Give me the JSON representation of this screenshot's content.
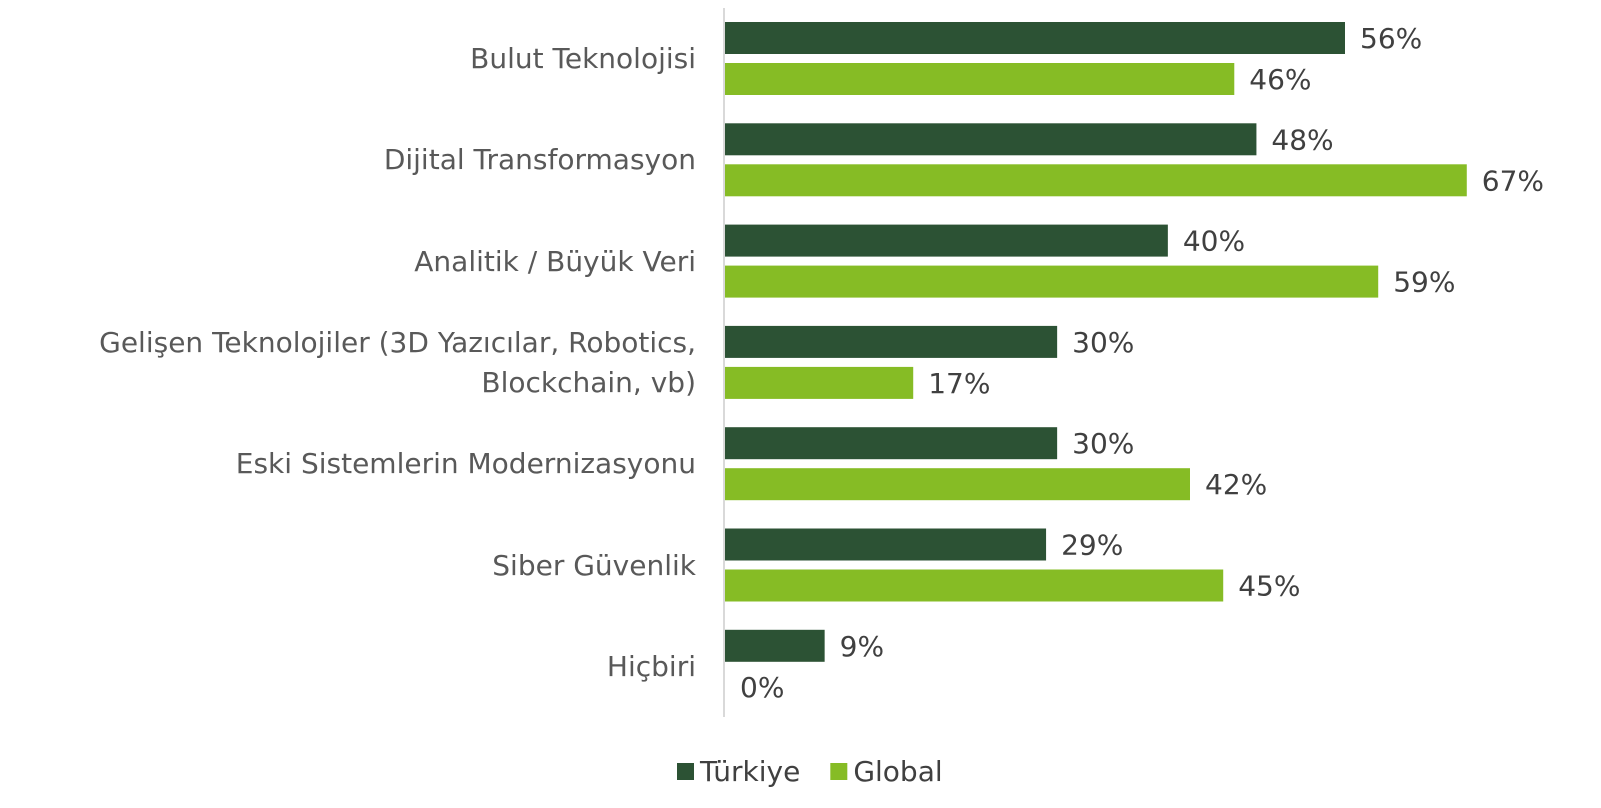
{
  "chart_data": {
    "type": "hbar",
    "categories": [
      "Bulut Teknolojisi",
      "Dijital Transformasyon",
      "Analitik / Büyük Veri",
      "Gelişen Teknolojiler (3D Yazıcılar, Robotics,\nBlockchain, vb)",
      "Eski Sistemlerin Modernizasyonu",
      "Siber Güvenlik",
      "Hiçbiri"
    ],
    "series": [
      {
        "name": "Türkiye",
        "color": "#2c5234",
        "values": [
          56,
          48,
          40,
          30,
          30,
          29,
          9
        ],
        "value_labels": [
          "56%",
          "48%",
          "40%",
          "30%",
          "30%",
          "29%",
          "9%"
        ]
      },
      {
        "name": "Global",
        "color": "#86bc25",
        "values": [
          46,
          67,
          59,
          17,
          42,
          45,
          0
        ],
        "value_labels": [
          "46%",
          "67%",
          "59%",
          "17%",
          "42%",
          "45%",
          "0%"
        ]
      }
    ],
    "xlim": [
      0,
      70
    ],
    "legend": "bottom"
  }
}
